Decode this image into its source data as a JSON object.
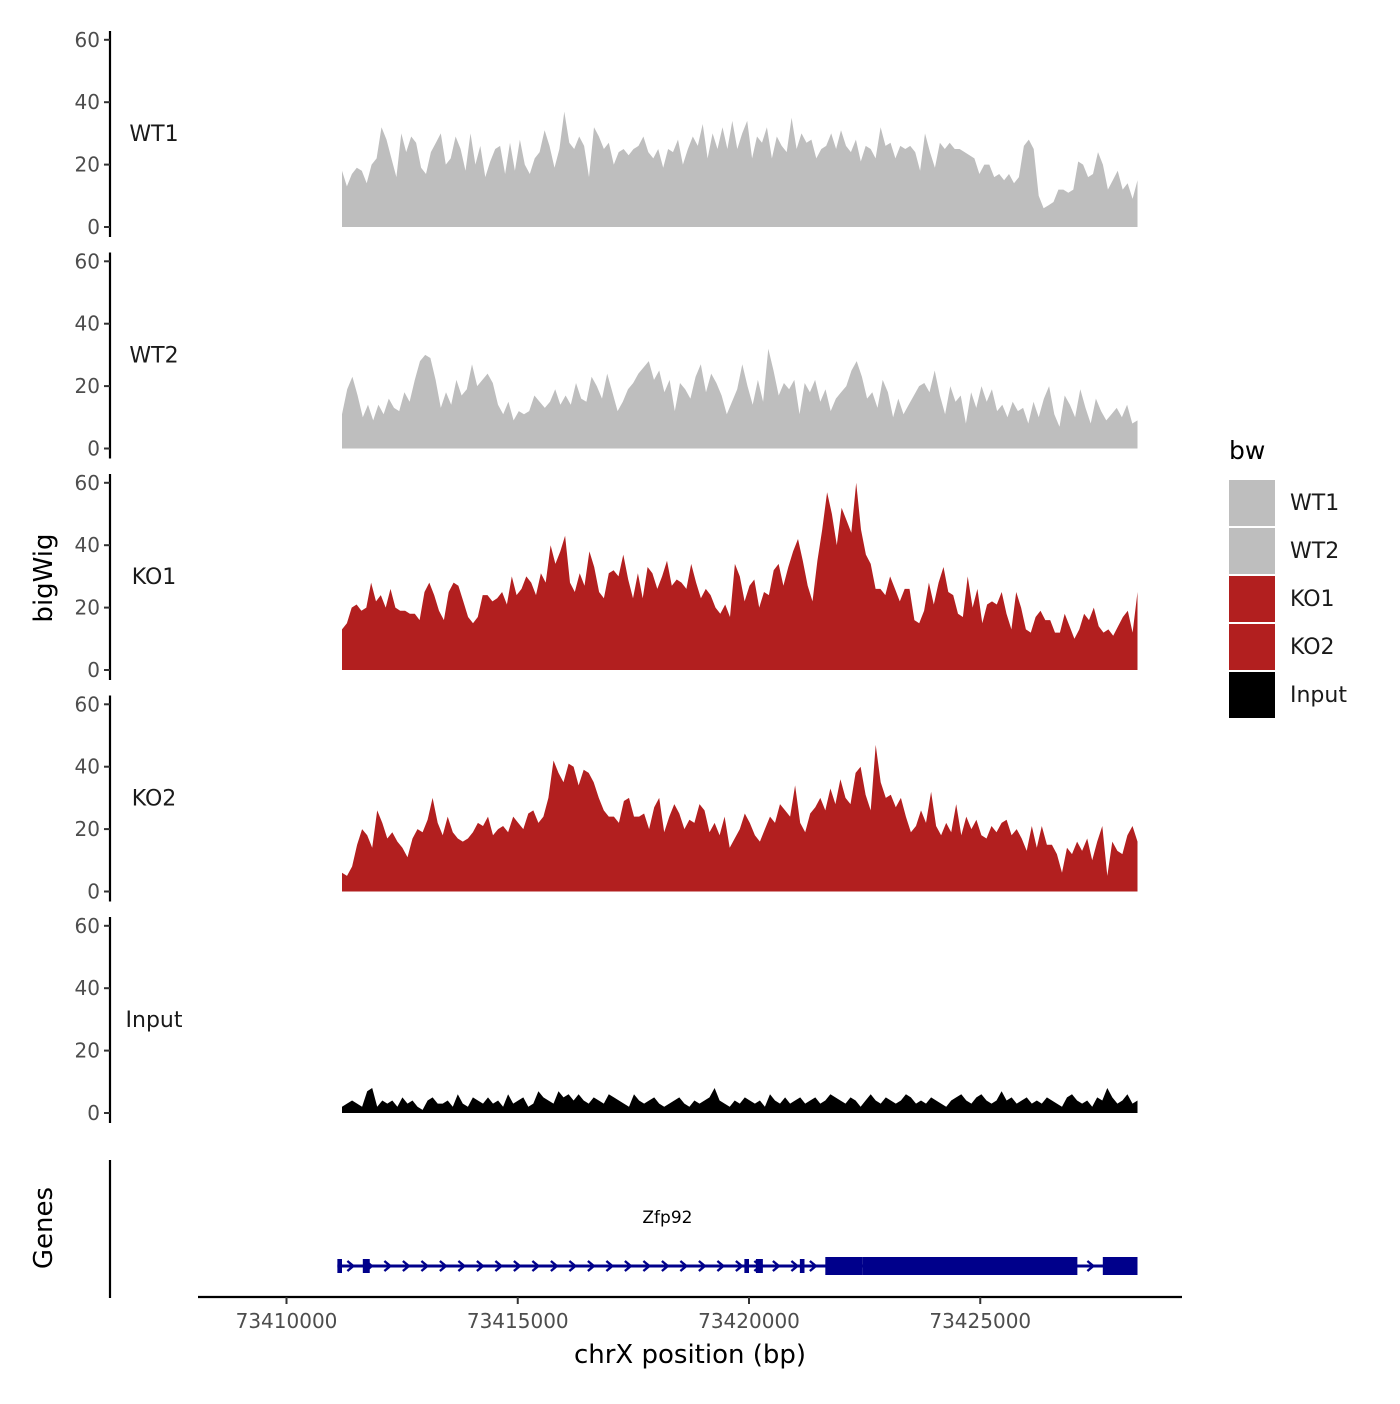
{
  "chart_data": {
    "type": "area",
    "ylabel": "bigWig",
    "xlabel": "chrX position (bp)",
    "genes_label": "Genes",
    "ylim": [
      0,
      62
    ],
    "yticks": [
      0,
      20,
      40,
      60
    ],
    "xlim": [
      73409000,
      73429200
    ],
    "xticks": [
      73410000,
      73415000,
      73420000,
      73425000
    ],
    "xtick_labels": [
      "73410000",
      "73415000",
      "73420000",
      "73425000"
    ],
    "legend": {
      "title": "bw",
      "position": "right",
      "entries": [
        {
          "label": "WT1",
          "color": "#bebebe"
        },
        {
          "label": "WT2",
          "color": "#bebebe"
        },
        {
          "label": "KO1",
          "color": "#b21f1f"
        },
        {
          "label": "KO2",
          "color": "#b21f1f"
        },
        {
          "label": "Input",
          "color": "#000000"
        }
      ]
    },
    "series": [
      {
        "name": "WT1",
        "color": "#bebebe",
        "x_start": 73411200,
        "x_end": 73428400,
        "values": [
          18,
          13,
          17,
          19,
          18,
          14,
          20,
          22,
          32,
          28,
          22,
          16,
          30,
          24,
          29,
          27,
          19,
          17,
          24,
          27,
          30,
          20,
          22,
          29,
          25,
          18,
          30,
          20,
          26,
          16,
          21,
          25,
          26,
          17,
          27,
          18,
          28,
          20,
          17,
          22,
          24,
          31,
          26,
          19,
          25,
          37,
          27,
          25,
          29,
          26,
          16,
          32,
          29,
          25,
          27,
          20,
          24,
          25,
          23,
          25,
          26,
          29,
          24,
          22,
          25,
          19,
          25,
          24,
          28,
          20,
          25,
          29,
          26,
          33,
          22,
          30,
          25,
          32,
          25,
          34,
          25,
          30,
          34,
          22,
          29,
          27,
          32,
          22,
          29,
          26,
          24,
          35,
          25,
          30,
          27,
          28,
          22,
          25,
          26,
          30,
          25,
          31,
          26,
          24,
          28,
          21,
          26,
          25,
          22,
          32,
          26,
          27,
          22,
          26,
          25,
          26,
          24,
          18,
          30,
          24,
          19,
          27,
          25,
          27,
          25,
          25,
          24,
          23,
          22,
          17,
          20,
          20,
          16,
          17,
          15,
          17,
          14,
          16,
          26,
          28,
          25,
          10,
          6,
          7,
          8,
          12,
          12,
          11,
          12,
          21,
          20,
          16,
          17,
          24,
          20,
          12,
          15,
          18,
          12,
          14,
          9,
          15
        ]
      },
      {
        "name": "WT2",
        "color": "#bebebe",
        "x_start": 73411200,
        "x_end": 73428400,
        "values": [
          11,
          19,
          23,
          17,
          10,
          14,
          9,
          14,
          11,
          16,
          13,
          12,
          18,
          15,
          22,
          28,
          30,
          29,
          22,
          13,
          18,
          14,
          22,
          17,
          19,
          27,
          20,
          22,
          24,
          21,
          14,
          11,
          15,
          9,
          12,
          11,
          12,
          17,
          15,
          13,
          15,
          19,
          14,
          17,
          14,
          21,
          16,
          15,
          23,
          20,
          16,
          24,
          18,
          12,
          15,
          19,
          21,
          24,
          26,
          28,
          22,
          25,
          18,
          22,
          12,
          21,
          19,
          16,
          23,
          27,
          18,
          24,
          21,
          17,
          11,
          15,
          19,
          27,
          20,
          14,
          22,
          15,
          32,
          25,
          17,
          21,
          19,
          22,
          11,
          21,
          18,
          22,
          15,
          19,
          12,
          16,
          18,
          20,
          25,
          28,
          23,
          16,
          18,
          13,
          22,
          18,
          10,
          16,
          11,
          14,
          17,
          20,
          21,
          18,
          25,
          17,
          11,
          20,
          15,
          17,
          8,
          18,
          13,
          20,
          15,
          19,
          12,
          14,
          10,
          15,
          12,
          13,
          8,
          15,
          10,
          16,
          20,
          11,
          7,
          17,
          14,
          10,
          19,
          13,
          8,
          16,
          12,
          9,
          11,
          13,
          10,
          14,
          8,
          9
        ]
      },
      {
        "name": "KO1",
        "color": "#b21f1f",
        "x_start": 73411200,
        "x_end": 73428400,
        "values": [
          13,
          15,
          20,
          21,
          19,
          20,
          28,
          22,
          24,
          20,
          26,
          20,
          19,
          19,
          18,
          18,
          16,
          25,
          28,
          24,
          19,
          16,
          25,
          28,
          27,
          22,
          17,
          15,
          17,
          24,
          24,
          22,
          23,
          25,
          21,
          30,
          24,
          26,
          30,
          28,
          24,
          31,
          28,
          40,
          34,
          38,
          43,
          28,
          25,
          31,
          27,
          38,
          33,
          25,
          23,
          31,
          32,
          30,
          37,
          29,
          23,
          31,
          23,
          33,
          31,
          26,
          30,
          35,
          27,
          29,
          28,
          26,
          34,
          28,
          23,
          26,
          24,
          20,
          18,
          21,
          17,
          34,
          30,
          22,
          27,
          29,
          20,
          25,
          24,
          32,
          34,
          27,
          33,
          38,
          42,
          35,
          27,
          22,
          35,
          45,
          57,
          50,
          40,
          52,
          48,
          44,
          60,
          45,
          37,
          34,
          26,
          26,
          24,
          30,
          26,
          22,
          26,
          26,
          16,
          15,
          19,
          28,
          21,
          28,
          33,
          25,
          24,
          18,
          17,
          30,
          20,
          26,
          15,
          21,
          22,
          21,
          25,
          18,
          13,
          25,
          20,
          13,
          12,
          17,
          19,
          16,
          16,
          12,
          12,
          18,
          14,
          10,
          13,
          18,
          16,
          20,
          14,
          12,
          13,
          11,
          14,
          17,
          19,
          12,
          25
        ]
      },
      {
        "name": "KO2",
        "color": "#b21f1f",
        "x_start": 73411200,
        "x_end": 73428400,
        "values": [
          6,
          5,
          8,
          15,
          20,
          18,
          14,
          26,
          22,
          17,
          19,
          16,
          14,
          11,
          17,
          20,
          19,
          23,
          30,
          22,
          18,
          24,
          19,
          17,
          16,
          17,
          19,
          22,
          21,
          24,
          18,
          20,
          21,
          19,
          24,
          22,
          20,
          25,
          26,
          22,
          24,
          30,
          42,
          38,
          35,
          41,
          40,
          34,
          39,
          38,
          35,
          30,
          26,
          24,
          24,
          22,
          29,
          30,
          24,
          24,
          25,
          20,
          27,
          30,
          19,
          24,
          28,
          25,
          20,
          23,
          22,
          28,
          26,
          19,
          22,
          18,
          24,
          14,
          17,
          20,
          25,
          22,
          18,
          16,
          20,
          24,
          22,
          28,
          26,
          24,
          34,
          22,
          19,
          25,
          27,
          30,
          26,
          33,
          28,
          36,
          30,
          28,
          38,
          40,
          31,
          26,
          47,
          35,
          30,
          31,
          27,
          30,
          24,
          19,
          21,
          26,
          22,
          32,
          21,
          18,
          22,
          19,
          28,
          18,
          24,
          20,
          23,
          18,
          17,
          21,
          19,
          22,
          23,
          18,
          20,
          17,
          13,
          21,
          14,
          21,
          15,
          15,
          12,
          6,
          14,
          12,
          16,
          13,
          17,
          10,
          16,
          21,
          5,
          16,
          13,
          12,
          18,
          21,
          16
        ]
      },
      {
        "name": "Input",
        "color": "#000000",
        "x_start": 73411200,
        "x_end": 73428400,
        "values": [
          2,
          3,
          4,
          3,
          2,
          7,
          8,
          2,
          4,
          3,
          4,
          2,
          5,
          3,
          4,
          2,
          1,
          4,
          5,
          3,
          3,
          4,
          2,
          6,
          3,
          2,
          5,
          4,
          3,
          5,
          3,
          4,
          2,
          6,
          3,
          4,
          5,
          2,
          3,
          7,
          5,
          4,
          3,
          7,
          5,
          6,
          4,
          6,
          4,
          3,
          5,
          4,
          3,
          6,
          5,
          4,
          3,
          2,
          6,
          4,
          3,
          4,
          5,
          3,
          2,
          3,
          4,
          5,
          3,
          2,
          4,
          3,
          4,
          5,
          8,
          4,
          3,
          2,
          4,
          3,
          5,
          4,
          3,
          4,
          2,
          6,
          4,
          3,
          5,
          3,
          4,
          5,
          3,
          4,
          5,
          3,
          4,
          6,
          5,
          4,
          3,
          5,
          4,
          2,
          4,
          6,
          4,
          3,
          5,
          4,
          3,
          4,
          6,
          5,
          3,
          4,
          3,
          5,
          4,
          3,
          2,
          4,
          5,
          6,
          4,
          3,
          5,
          6,
          4,
          3,
          4,
          7,
          4,
          5,
          3,
          4,
          5,
          3,
          4,
          3,
          5,
          4,
          3,
          2,
          5,
          6,
          4,
          3,
          4,
          2,
          5,
          4,
          8,
          5,
          3,
          4,
          6,
          3,
          4
        ]
      }
    ],
    "genes": [
      {
        "name": "Zfp92",
        "strand": "+",
        "start": 73411100,
        "end": 73428400,
        "exons": [
          [
            73411100,
            73411200
          ],
          [
            73411650,
            73411800
          ],
          [
            73419900,
            73420000
          ],
          [
            73420150,
            73420300
          ],
          [
            73421100,
            73421200
          ],
          [
            73421650,
            73422450
          ],
          [
            73422450,
            73427100
          ],
          [
            73427650,
            73428400
          ]
        ],
        "thick_exons": [
          [
            73421650,
            73427100
          ],
          [
            73427650,
            73428400
          ]
        ]
      }
    ]
  }
}
